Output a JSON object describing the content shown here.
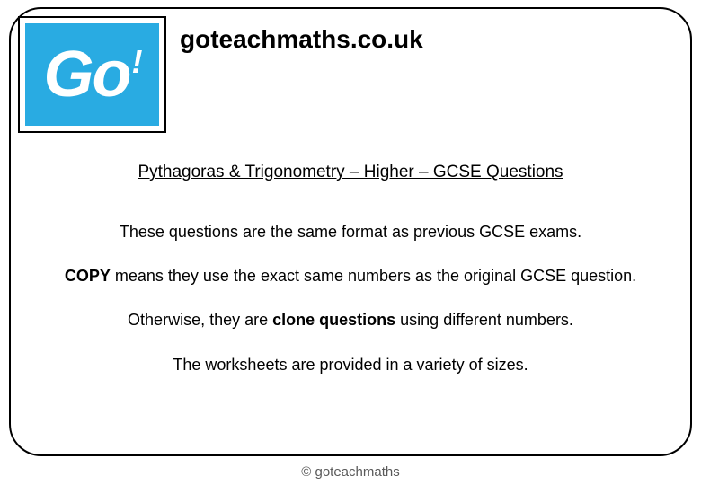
{
  "logo": {
    "text_main": "Go",
    "text_bang": "!",
    "bg_color": "#29abe2",
    "text_color": "#ffffff"
  },
  "header": {
    "site_title": "goteachmaths.co.uk"
  },
  "content": {
    "subtitle": "Pythagoras & Trigonometry – Higher – GCSE Questions",
    "line1": "These questions are the same format as previous GCSE exams.",
    "line2_bold1": "COPY",
    "line2_rest": " means they use the exact same numbers as the original GCSE question.",
    "line3_pre": "Otherwise, they are ",
    "line3_bold": "clone questions",
    "line3_post": " using different numbers.",
    "line4": "The worksheets are provided in a variety of sizes."
  },
  "footer": {
    "text": "© goteachmaths"
  },
  "styling": {
    "frame_border_color": "#000000",
    "frame_border_radius": 36,
    "background": "#ffffff",
    "body_font_size": 18,
    "header_font_size": 28,
    "footer_color": "#595959"
  }
}
